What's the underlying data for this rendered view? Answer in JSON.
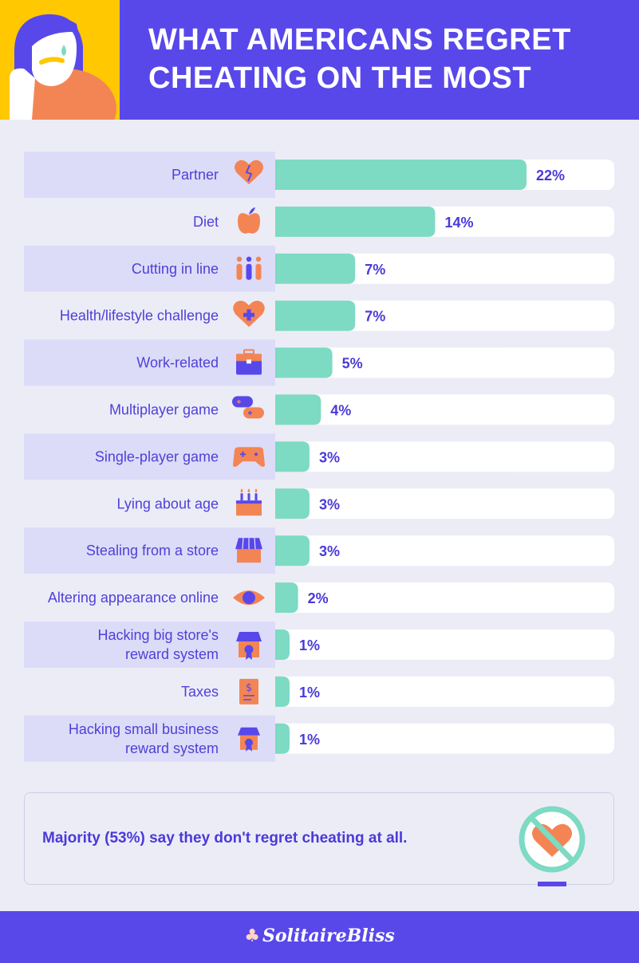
{
  "header": {
    "title_line1": "WHAT AMERICANS REGRET",
    "title_line2": "CHEATING ON THE MOST"
  },
  "chart_data": {
    "type": "bar",
    "orientation": "horizontal",
    "title": "WHAT AMERICANS REGRET CHEATING ON THE MOST",
    "unit": "%",
    "categories": [
      "Partner",
      "Diet",
      "Cutting in line",
      "Health/lifestyle challenge",
      "Work-related",
      "Multiplayer game",
      "Single-player game",
      "Lying about age",
      "Stealing from a store",
      "Altering appearance online",
      "Hacking big store's reward system",
      "Taxes",
      "Hacking small business reward system"
    ],
    "label_lines": [
      [
        "Partner"
      ],
      [
        "Diet"
      ],
      [
        "Cutting in line"
      ],
      [
        "Health/lifestyle challenge"
      ],
      [
        "Work-related"
      ],
      [
        "Multiplayer game"
      ],
      [
        "Single-player game"
      ],
      [
        "Lying about age"
      ],
      [
        "Stealing from a store"
      ],
      [
        "Altering appearance online"
      ],
      [
        "Hacking big store's",
        "reward system"
      ],
      [
        "Taxes"
      ],
      [
        "Hacking small business",
        "reward system"
      ]
    ],
    "values": [
      22,
      14,
      7,
      7,
      5,
      4,
      3,
      3,
      3,
      2,
      1,
      1,
      1
    ],
    "value_labels": [
      "22%",
      "14%",
      "7%",
      "7%",
      "5%",
      "4%",
      "3%",
      "3%",
      "3%",
      "2%",
      "1%",
      "1%",
      "1%"
    ],
    "icons": [
      "broken-heart-icon",
      "apple-icon",
      "people-queue-icon",
      "heart-plus-icon",
      "briefcase-icon",
      "two-controllers-icon",
      "controller-icon",
      "birthday-cake-icon",
      "storefront-icon",
      "eye-icon",
      "store-badge-icon",
      "tax-document-icon",
      "small-store-badge-icon"
    ],
    "xlim": [
      0,
      22
    ],
    "colors": {
      "bar": "#7ddac3",
      "track": "#ffffff",
      "label_band": "#dcdcf8",
      "text": "#5040d8",
      "icon": "#f38554",
      "icon_accent": "#5848ea"
    }
  },
  "callout": {
    "text": "Majority (53%) say they don't regret cheating at all.",
    "icon": "no-heart-icon"
  },
  "footer": {
    "brand": "SolitaireBliss",
    "brand_icon": "card-suits-icon"
  },
  "colors": {
    "primary": "#5848ea",
    "accent_yellow": "#ffc800",
    "accent_orange": "#f38554",
    "teal": "#7ddac3",
    "background": "#ececf7"
  }
}
